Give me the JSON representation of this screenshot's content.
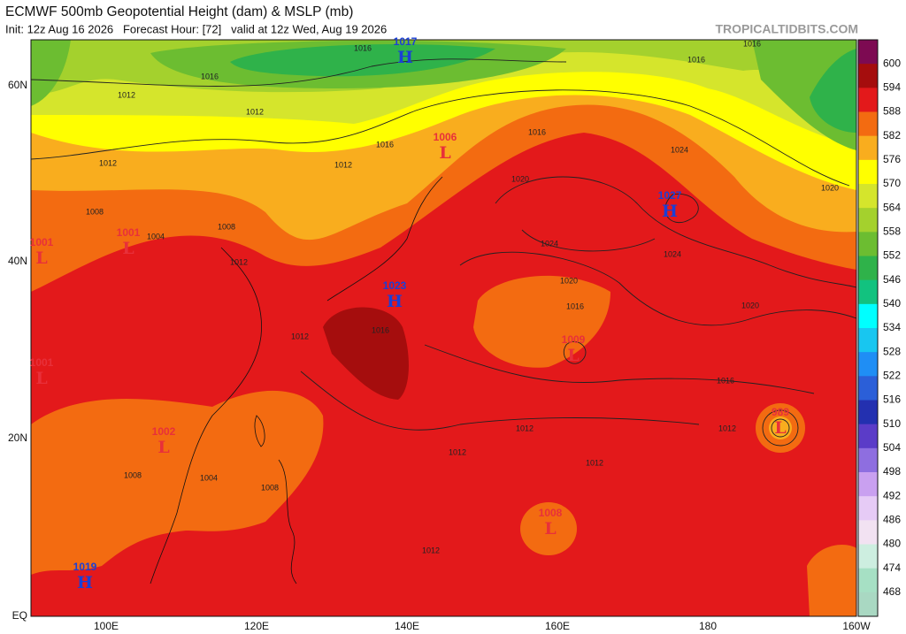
{
  "header": {
    "title": "ECMWF 500mb Geopotential Height (dam) & MSLP (mb)",
    "subtitle": "Init: 12z Aug 16 2026   Forecast Hour: [72]   valid at 12z Wed, Aug 19 2026",
    "brand": "TROPICALTIDBITS.COM"
  },
  "axes": {
    "lat_labels": [
      "60N",
      "40N",
      "20N",
      "EQ"
    ],
    "lon_labels": [
      "100E",
      "120E",
      "140E",
      "160E",
      "180",
      "160W"
    ]
  },
  "colorbar": {
    "levels": [
      600,
      594,
      588,
      582,
      576,
      570,
      564,
      558,
      552,
      546,
      540,
      534,
      528,
      522,
      516,
      510,
      504,
      498,
      492,
      486,
      480,
      474,
      468
    ],
    "colors": [
      "#7d0a52",
      "#a50d0d",
      "#e3191b",
      "#f36b11",
      "#f9ad1e",
      "#ffff00",
      "#d5e52c",
      "#a4d12d",
      "#6cbd31",
      "#2fb24a",
      "#12c27f",
      "#00ffff",
      "#18c6f0",
      "#1f8ef5",
      "#2b5fd8",
      "#2330b0",
      "#5b3cc8",
      "#8e6ee0",
      "#c9a0f0",
      "#e6cbf6",
      "#f2e2f2",
      "#cdeee0",
      "#a6e0c4",
      "#a9d8c2"
    ]
  },
  "pressure_centers": [
    {
      "kind": "H",
      "value": 1017
    },
    {
      "kind": "L",
      "value": 1006
    },
    {
      "kind": "H",
      "value": 1027
    },
    {
      "kind": "H",
      "value": 1023
    },
    {
      "kind": "L",
      "value": 1009
    },
    {
      "kind": "L",
      "value": 1001
    },
    {
      "kind": "L",
      "value": 1001
    },
    {
      "kind": "L",
      "value": 1001
    },
    {
      "kind": "L",
      "value": 1002
    },
    {
      "kind": "L",
      "value": 989
    },
    {
      "kind": "L",
      "value": 1008
    },
    {
      "kind": "H",
      "value": 1019
    }
  ],
  "contour_labels": [
    1016,
    1016,
    1016,
    1016,
    1012,
    1012,
    1016,
    1012,
    1012,
    1016,
    1020,
    1024,
    1020,
    1024,
    1024,
    1008,
    1004,
    1008,
    1012,
    1020,
    1016,
    1020,
    1012,
    1016,
    1016,
    1012,
    1012,
    1012,
    1012,
    1004,
    1008,
    1012,
    1008
  ]
}
